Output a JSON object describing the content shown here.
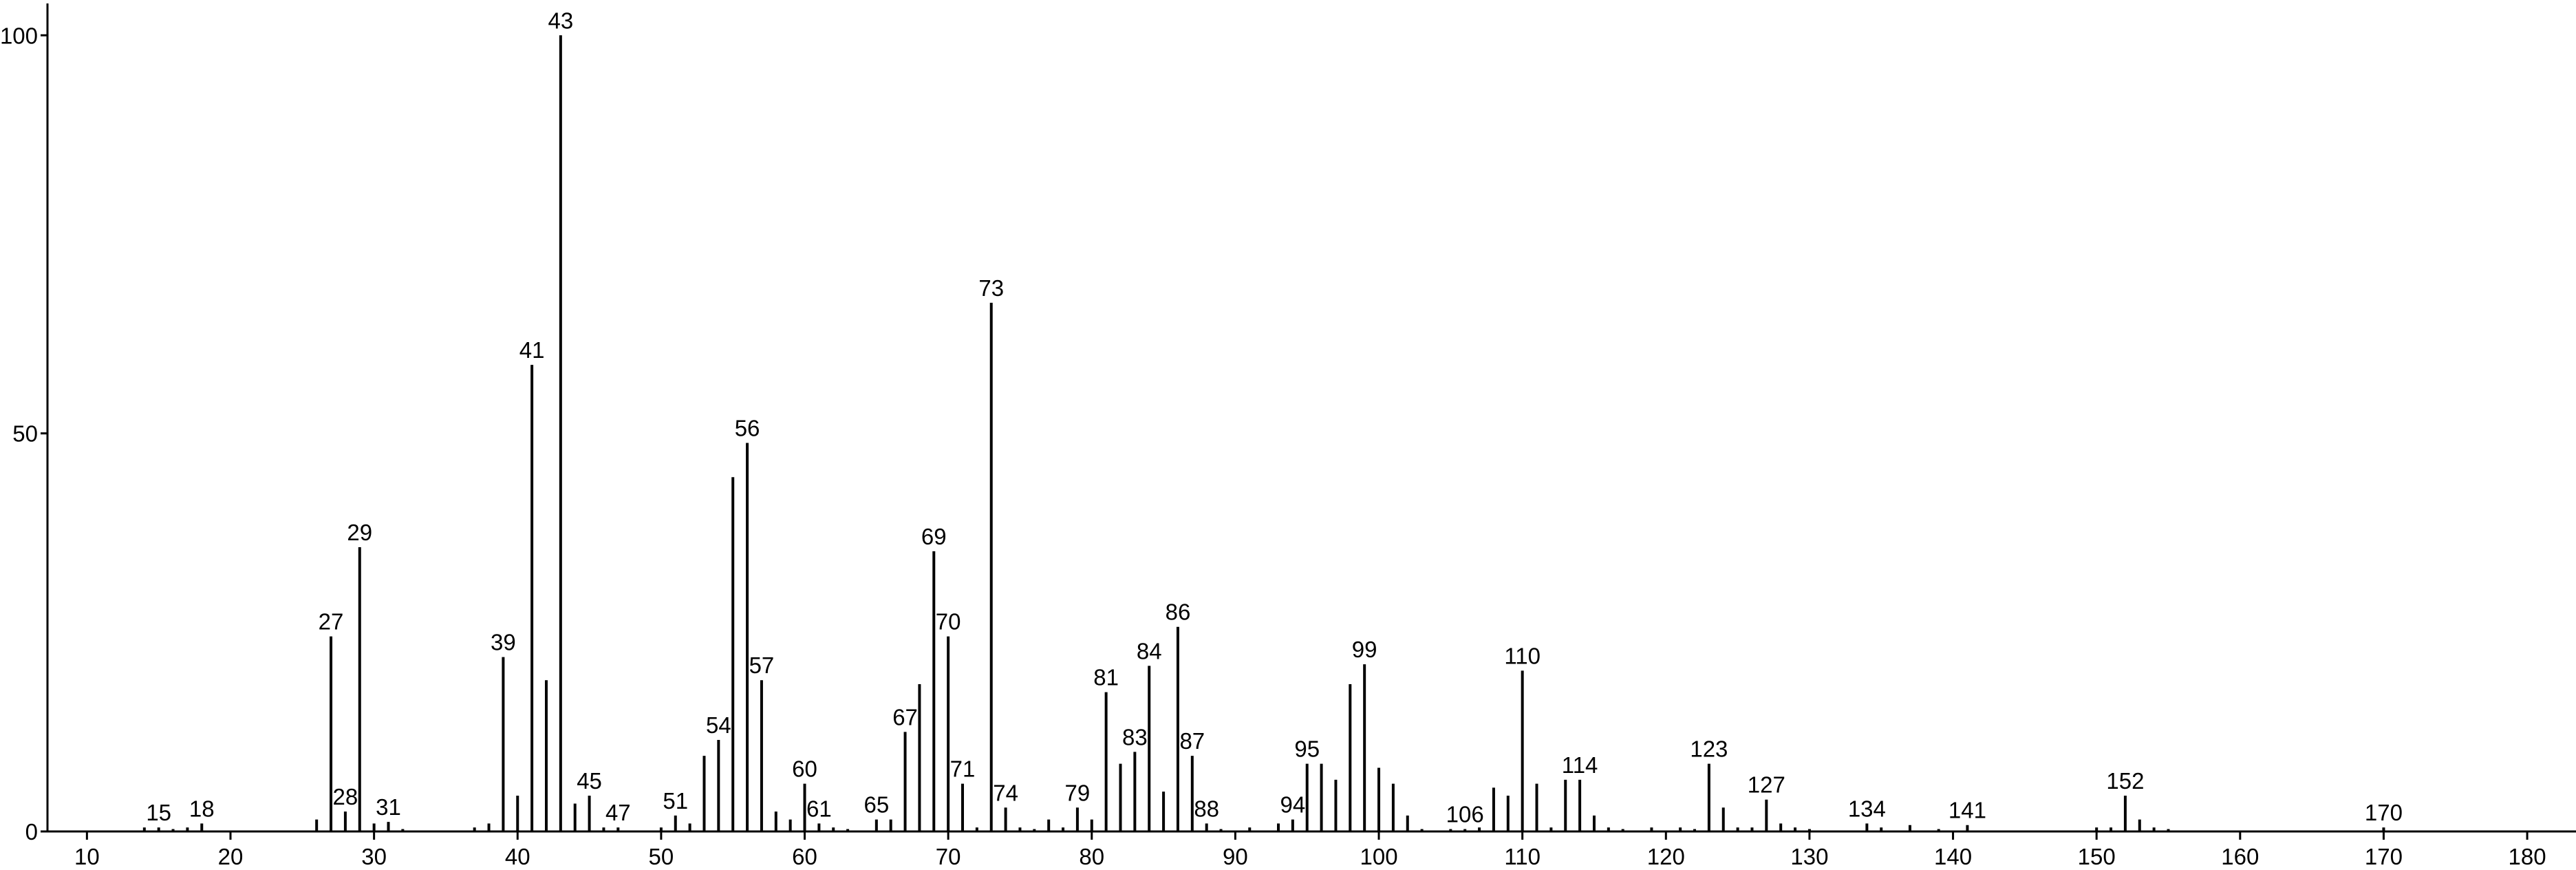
{
  "chart_data": {
    "type": "stem",
    "color": "#000000",
    "x": [
      14,
      15,
      16,
      17,
      18,
      26,
      27,
      28,
      29,
      30,
      31,
      32,
      37,
      38,
      39,
      40,
      41,
      42,
      43,
      44,
      45,
      46,
      47,
      50,
      51,
      52,
      53,
      54,
      55,
      56,
      57,
      58,
      59,
      60,
      61,
      62,
      63,
      65,
      66,
      67,
      68,
      69,
      70,
      71,
      72,
      73,
      74,
      75,
      76,
      77,
      78,
      79,
      80,
      81,
      82,
      83,
      84,
      85,
      86,
      87,
      88,
      89,
      91,
      93,
      94,
      95,
      96,
      97,
      98,
      99,
      100,
      101,
      102,
      103,
      105,
      106,
      107,
      108,
      109,
      110,
      111,
      112,
      113,
      114,
      115,
      116,
      117,
      119,
      121,
      122,
      123,
      124,
      125,
      126,
      127,
      128,
      129,
      130,
      134,
      135,
      137,
      139,
      141,
      150,
      151,
      152,
      153,
      154,
      155,
      170
    ],
    "values": [
      0.5,
      0.5,
      0.3,
      0.5,
      1,
      1.5,
      24.5,
      2.5,
      35.7,
      1,
      1.2,
      0.3,
      0.5,
      1,
      21.9,
      4.5,
      58.6,
      19,
      100,
      3.5,
      4.5,
      0.5,
      0.5,
      0.5,
      2,
      1,
      9.5,
      11.5,
      44.5,
      48.8,
      19,
      2.5,
      1.5,
      6,
      1,
      0.5,
      0.3,
      1.5,
      1.5,
      12.5,
      18.5,
      35.2,
      24.5,
      6,
      0.5,
      66.4,
      3,
      0.5,
      0.3,
      1.5,
      0.5,
      3,
      1.5,
      17.5,
      8.5,
      10,
      20.8,
      5,
      25.7,
      9.5,
      1,
      0.3,
      0.5,
      1,
      1.5,
      8.5,
      8.5,
      6.5,
      18.5,
      21,
      8,
      6,
      2,
      0.3,
      0.3,
      0.3,
      0.5,
      5.5,
      4.5,
      20.2,
      6,
      0.5,
      6.5,
      6.5,
      2,
      0.5,
      0.3,
      0.5,
      0.5,
      0.3,
      8.5,
      3,
      0.5,
      0.5,
      4,
      1,
      0.5,
      0.3,
      1,
      0.5,
      0.8,
      0.3,
      0.8,
      0.5,
      0.5,
      4.5,
      1.5,
      0.5,
      0.3,
      0.5
    ],
    "peak_labels": [
      null,
      15,
      null,
      null,
      18,
      null,
      27,
      28,
      29,
      null,
      31,
      null,
      null,
      null,
      39,
      null,
      41,
      null,
      43,
      null,
      45,
      null,
      47,
      null,
      51,
      null,
      null,
      54,
      null,
      56,
      57,
      null,
      null,
      60,
      61,
      null,
      null,
      65,
      null,
      67,
      null,
      69,
      70,
      71,
      null,
      73,
      74,
      null,
      null,
      null,
      null,
      79,
      null,
      81,
      null,
      83,
      84,
      null,
      86,
      87,
      88,
      null,
      null,
      null,
      94,
      95,
      null,
      null,
      null,
      99,
      null,
      null,
      null,
      null,
      null,
      106,
      null,
      null,
      null,
      110,
      null,
      null,
      null,
      114,
      null,
      null,
      null,
      null,
      null,
      null,
      123,
      null,
      null,
      null,
      127,
      null,
      null,
      null,
      134,
      null,
      null,
      null,
      141,
      null,
      null,
      152,
      null,
      null,
      null,
      170
    ],
    "xlim": [
      7.25,
      183.4
    ],
    "xticks": [
      10,
      20,
      30,
      40,
      50,
      60,
      70,
      80,
      90,
      100,
      110,
      120,
      130,
      140,
      150,
      160,
      170,
      180
    ],
    "ylim": [
      0,
      104
    ],
    "yticks": [
      0,
      50,
      100
    ]
  }
}
